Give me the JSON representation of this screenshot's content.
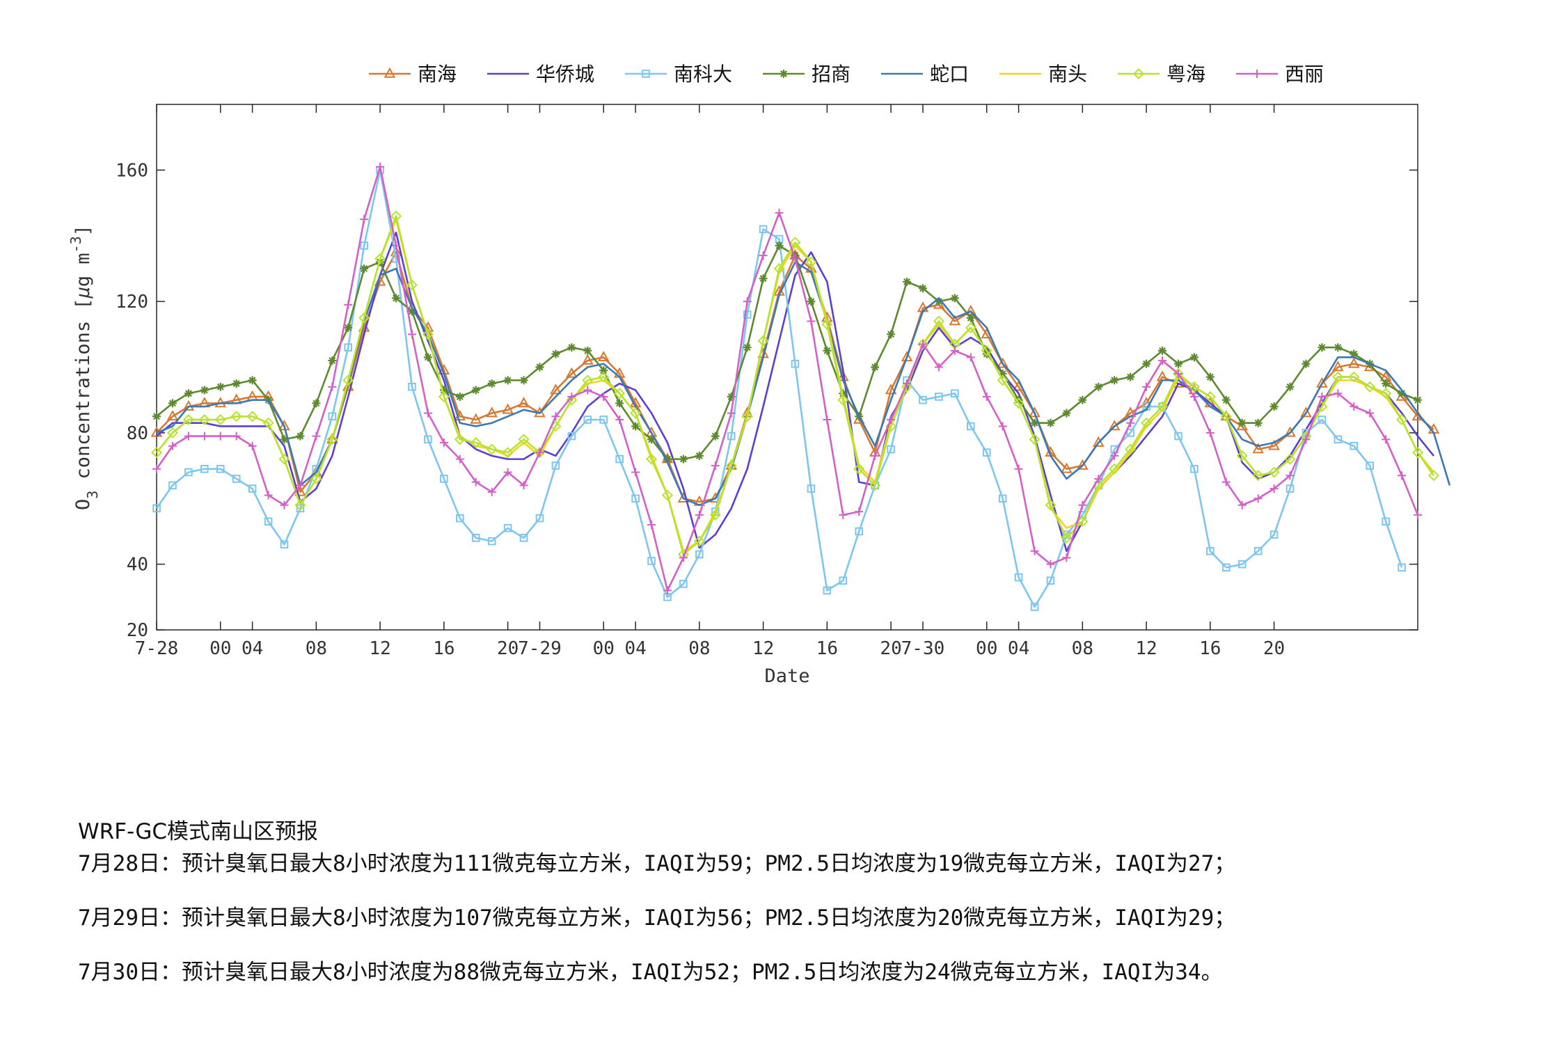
{
  "chart_data": {
    "type": "line",
    "xlabel": "Date",
    "ylabel": "O3 concentrations [μg m-3]",
    "ylim": [
      20,
      180
    ],
    "yticks": [
      20,
      40,
      80,
      120,
      160
    ],
    "xlim": [
      0,
      79
    ],
    "x_ticks": [
      {
        "x": 0,
        "label": "7-28"
      },
      {
        "x": 4,
        "label": "00"
      },
      {
        "x": 6,
        "label": "04"
      },
      {
        "x": 10,
        "label": "08"
      },
      {
        "x": 14,
        "label": "12"
      },
      {
        "x": 18,
        "label": "16"
      },
      {
        "x": 22,
        "label": "20"
      },
      {
        "x": 24,
        "label": "7-29"
      },
      {
        "x": 28,
        "label": "00"
      },
      {
        "x": 30,
        "label": "04"
      },
      {
        "x": 34,
        "label": "08"
      },
      {
        "x": 38,
        "label": "12"
      },
      {
        "x": 42,
        "label": "16"
      },
      {
        "x": 46,
        "label": "20"
      },
      {
        "x": 48,
        "label": "7-30"
      },
      {
        "x": 52,
        "label": "00"
      },
      {
        "x": 54,
        "label": "04"
      },
      {
        "x": 58,
        "label": "08"
      },
      {
        "x": 62,
        "label": "12"
      },
      {
        "x": 66,
        "label": "16"
      },
      {
        "x": 70,
        "label": "20"
      }
    ],
    "legend_position": "top",
    "series": [
      {
        "name": "南海",
        "color": "#d7782e",
        "marker": "triangle",
        "values": [
          80,
          85,
          88,
          89,
          89,
          90,
          91,
          91,
          82,
          62,
          68,
          78,
          94,
          112,
          126,
          135,
          118,
          112,
          99,
          85,
          84,
          86,
          87,
          89,
          86,
          93,
          98,
          102,
          103,
          98,
          89,
          80,
          72,
          60,
          59,
          60,
          70,
          86,
          104,
          123,
          134,
          130,
          115,
          97,
          84,
          74,
          93,
          103,
          118,
          119,
          114,
          117,
          110,
          101,
          94,
          86,
          74,
          69,
          70,
          77,
          82,
          86,
          89,
          97,
          95,
          93,
          89,
          85,
          82,
          75,
          76,
          80,
          86,
          95,
          100,
          101,
          100,
          97,
          91,
          85,
          81
        ]
      },
      {
        "name": "华侨城",
        "color": "#5b3fd2",
        "marker": "none",
        "values": [
          79,
          83,
          83,
          83,
          82,
          82,
          82,
          82,
          76,
          59,
          63,
          73,
          91,
          110,
          128,
          141,
          120,
          108,
          96,
          79,
          75,
          73,
          72,
          72,
          75,
          73,
          80,
          88,
          92,
          95,
          93,
          86,
          77,
          63,
          45,
          49,
          57,
          69,
          88,
          108,
          128,
          135,
          126,
          99,
          65,
          64,
          85,
          93,
          105,
          112,
          106,
          109,
          106,
          98,
          92,
          79,
          61,
          44,
          53,
          63,
          68,
          73,
          79,
          85,
          95,
          93,
          89,
          85,
          71,
          66,
          68,
          73,
          81,
          89,
          97,
          97,
          94,
          92,
          86,
          79,
          73
        ]
      },
      {
        "name": "南科大",
        "color": "#7cc6ef",
        "marker": "square",
        "values": [
          57,
          64,
          68,
          69,
          69,
          66,
          63,
          53,
          46,
          57,
          69,
          85,
          106,
          137,
          160,
          133,
          94,
          78,
          66,
          54,
          48,
          47,
          51,
          48,
          54,
          70,
          79,
          84,
          84,
          72,
          60,
          41,
          30,
          34,
          43,
          56,
          79,
          116,
          142,
          139,
          101,
          63,
          32,
          35,
          50,
          64,
          75,
          96,
          90,
          91,
          92,
          82,
          74,
          60,
          36,
          27,
          35,
          49,
          55,
          64,
          75,
          80,
          88,
          88,
          79,
          69,
          44,
          39,
          40,
          44,
          49,
          63,
          80,
          84,
          78,
          76,
          70,
          53,
          39
        ]
      },
      {
        "name": "招商",
        "color": "#5d8a2f",
        "marker": "star",
        "values": [
          85,
          89,
          92,
          93,
          94,
          95,
          96,
          90,
          78,
          79,
          89,
          102,
          112,
          130,
          132,
          121,
          117,
          103,
          93,
          91,
          93,
          95,
          96,
          96,
          100,
          104,
          106,
          105,
          99,
          89,
          82,
          78,
          72,
          72,
          73,
          79,
          91,
          106,
          127,
          137,
          134,
          120,
          105,
          92,
          85,
          100,
          110,
          126,
          124,
          120,
          121,
          115,
          104,
          98,
          90,
          83,
          83,
          86,
          90,
          94,
          96,
          97,
          101,
          105,
          101,
          103,
          97,
          90,
          83,
          83,
          88,
          94,
          101,
          106,
          106,
          104,
          101,
          95,
          92,
          90
        ]
      },
      {
        "name": "蛇口",
        "color": "#3a78b6",
        "marker": "none",
        "values": [
          80,
          82,
          88,
          88,
          89,
          89,
          90,
          90,
          82,
          64,
          68,
          78,
          95,
          114,
          128,
          130,
          118,
          110,
          98,
          83,
          82,
          83,
          85,
          87,
          86,
          91,
          96,
          100,
          101,
          97,
          88,
          80,
          71,
          60,
          58,
          60,
          69,
          85,
          103,
          122,
          132,
          129,
          114,
          96,
          85,
          76,
          90,
          103,
          117,
          121,
          115,
          117,
          112,
          101,
          96,
          86,
          73,
          66,
          70,
          77,
          82,
          85,
          87,
          96,
          96,
          93,
          88,
          85,
          78,
          76,
          77,
          80,
          86,
          95,
          103,
          103,
          101,
          99,
          93,
          86,
          80,
          64
        ]
      },
      {
        "name": "南头",
        "color": "#f7d21b",
        "marker": "none",
        "values": [
          74,
          80,
          84,
          84,
          84,
          85,
          85,
          83,
          72,
          58,
          66,
          78,
          96,
          115,
          133,
          145,
          125,
          110,
          91,
          79,
          76,
          75,
          73,
          77,
          73,
          82,
          90,
          95,
          96,
          92,
          86,
          73,
          61,
          44,
          47,
          56,
          70,
          85,
          108,
          129,
          137,
          132,
          114,
          91,
          70,
          65,
          83,
          94,
          107,
          113,
          107,
          112,
          105,
          96,
          89,
          78,
          57,
          51,
          53,
          63,
          68,
          74,
          82,
          87,
          97,
          94,
          91,
          85,
          73,
          67,
          68,
          72,
          79,
          88,
          96,
          96,
          94,
          91,
          84,
          74,
          68
        ]
      },
      {
        "name": "粤海",
        "color": "#b7e22d",
        "marker": "diamond",
        "values": [
          74,
          80,
          84,
          84,
          84,
          85,
          85,
          83,
          72,
          58,
          66,
          78,
          96,
          115,
          133,
          146,
          125,
          110,
          91,
          78,
          77,
          75,
          74,
          78,
          74,
          82,
          90,
          96,
          97,
          92,
          86,
          72,
          61,
          43,
          47,
          55,
          70,
          85,
          108,
          130,
          138,
          132,
          113,
          90,
          69,
          64,
          82,
          94,
          107,
          114,
          107,
          112,
          105,
          96,
          89,
          78,
          58,
          48,
          53,
          64,
          69,
          75,
          83,
          88,
          98,
          94,
          91,
          85,
          73,
          67,
          68,
          72,
          79,
          88,
          97,
          97,
          94,
          92,
          84,
          74,
          67
        ]
      },
      {
        "name": "西丽",
        "color": "#d55fc9",
        "marker": "plus",
        "values": [
          69,
          76,
          79,
          79,
          79,
          79,
          76,
          61,
          58,
          64,
          79,
          94,
          119,
          145,
          161,
          137,
          110,
          86,
          77,
          72,
          65,
          62,
          68,
          64,
          74,
          85,
          91,
          93,
          91,
          84,
          68,
          52,
          32,
          42,
          55,
          70,
          86,
          120,
          134,
          147,
          133,
          114,
          84,
          55,
          56,
          73,
          84,
          95,
          107,
          100,
          105,
          103,
          91,
          82,
          69,
          44,
          40,
          42,
          58,
          66,
          73,
          83,
          94,
          102,
          98,
          91,
          80,
          65,
          58,
          60,
          63,
          67,
          78,
          91,
          92,
          88,
          86,
          78,
          67,
          55
        ]
      }
    ]
  },
  "forecast": {
    "title": "WRF-GC模式南山区预报",
    "lines": [
      "7月28日：预计臭氧日最大8小时浓度为111微克每立方米，IAQI为59；PM2.5日均浓度为19微克每立方米，IAQI为27；",
      "7月29日：预计臭氧日最大8小时浓度为107微克每立方米，IAQI为56；PM2.5日均浓度为20微克每立方米，IAQI为29；",
      "7月30日：预计臭氧日最大8小时浓度为88微克每立方米，IAQI为52；PM2.5日均浓度为24微克每立方米，IAQI为34。"
    ]
  }
}
